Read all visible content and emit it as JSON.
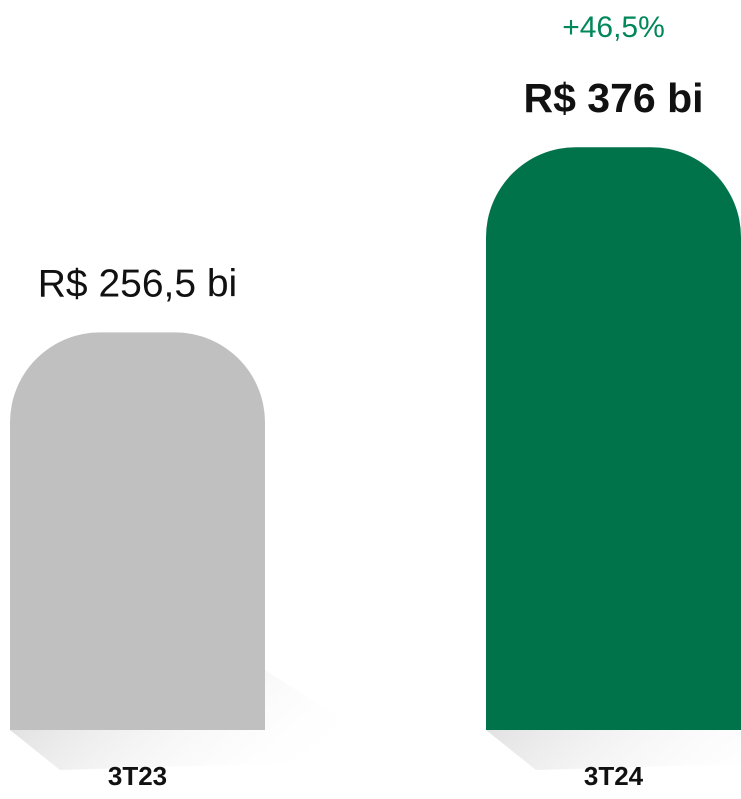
{
  "chart_data": {
    "type": "bar",
    "categories": [
      "3T23",
      "3T24"
    ],
    "values": [
      256.5,
      376
    ],
    "value_labels": [
      "R$ 256,5 bi",
      "R$ 376 bi"
    ],
    "colors": [
      "#c0c0c0",
      "#00734a"
    ],
    "annotation": "+46,5%"
  }
}
